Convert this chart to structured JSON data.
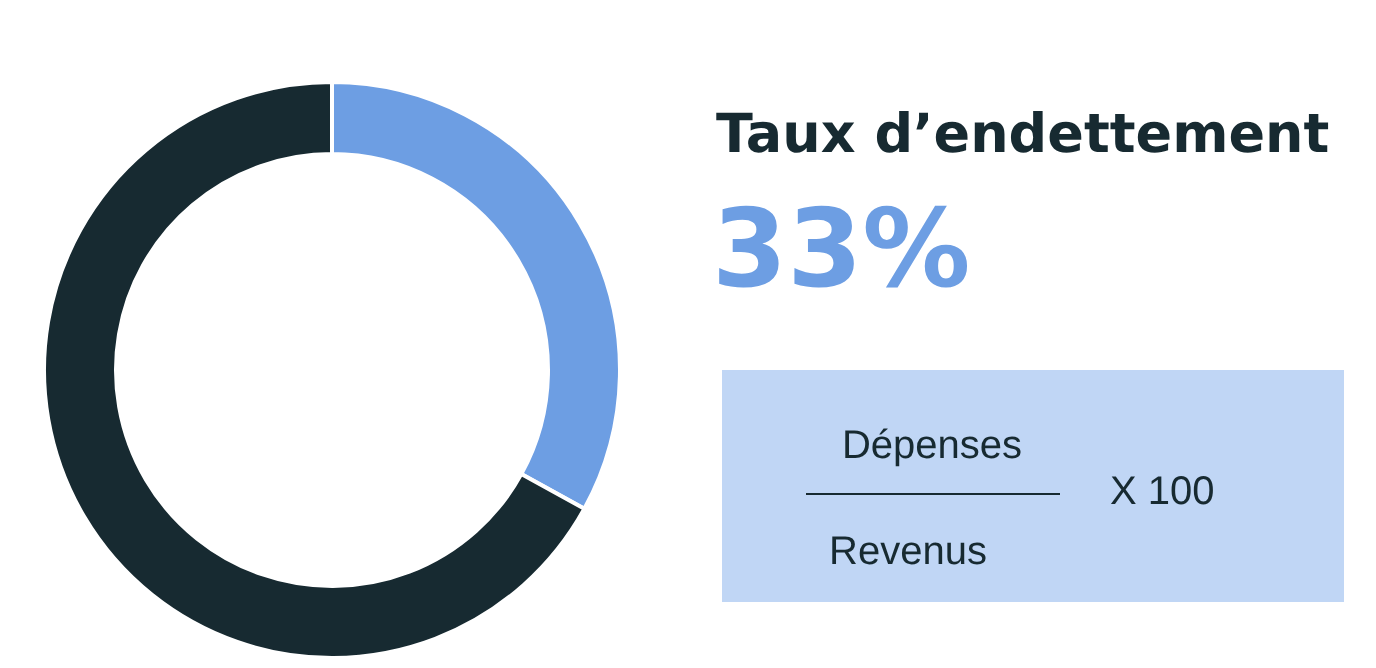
{
  "chart_data": {
    "type": "donut",
    "title": "Taux d’endettement",
    "categories": [
      null,
      null
    ],
    "values": [
      33,
      67
    ],
    "colors": [
      "#6d9ee3",
      "#172a31"
    ],
    "annotations": [
      "33%",
      "Dépenses",
      "Revenus",
      "X 100"
    ]
  }
}
